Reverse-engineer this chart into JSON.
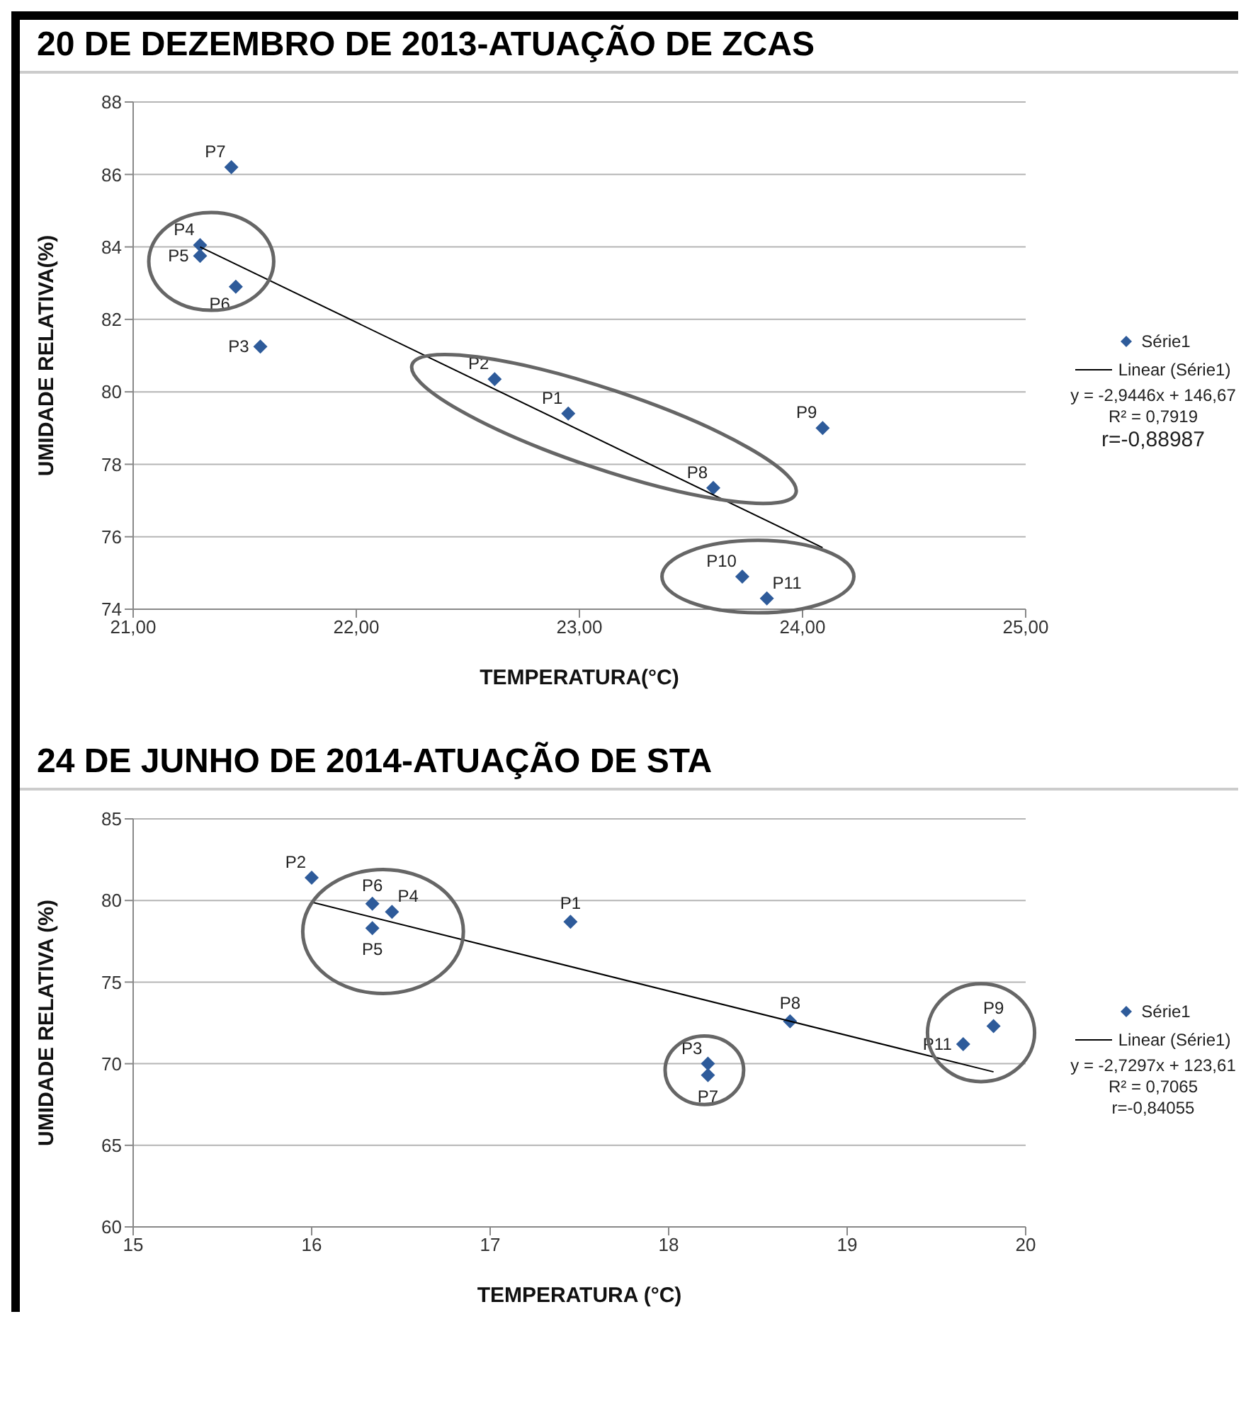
{
  "chart_data": [
    {
      "type": "scatter",
      "title": "20 DE DEZEMBRO DE 2013-ATUAÇÃO DE ZCAS",
      "xlabel": "TEMPERATURA(°C)",
      "ylabel": "UMIDADE RELATIVA(%)",
      "xlim": [
        21,
        25
      ],
      "xticks": [
        {
          "value": 21,
          "label": "21,00"
        },
        {
          "value": 22,
          "label": "22,00"
        },
        {
          "value": 23,
          "label": "23,00"
        },
        {
          "value": 24,
          "label": "24,00"
        },
        {
          "value": 25,
          "label": "25,00"
        }
      ],
      "ylim": [
        74,
        88
      ],
      "yticks": [
        74,
        76,
        78,
        80,
        82,
        84,
        86,
        88
      ],
      "grid": "y",
      "legend": "right",
      "series": [
        {
          "name": "Série1",
          "color": "#2e5b9a",
          "marker": "diamond",
          "x": [
            22.95,
            22.62,
            21.57,
            21.3,
            21.3,
            21.46,
            21.44,
            23.6,
            24.09,
            23.73,
            23.84
          ],
          "values": [
            79.4,
            80.35,
            81.25,
            84.05,
            83.75,
            82.9,
            86.2,
            77.35,
            79.0,
            74.9,
            74.3
          ],
          "value_labels": [
            "P1",
            "P2",
            "P3",
            "P4",
            "P5",
            "P6",
            "P7",
            "P8",
            "P9",
            "P10",
            "P11"
          ]
        },
        {
          "name": "Linear (Série1)",
          "type": "line",
          "color": "#000000",
          "marker": "none",
          "x": [
            21.3,
            24.09
          ],
          "values": [
            84.0,
            75.7
          ]
        }
      ],
      "annotations": [
        "y = -2,9446x + 146,67",
        "R² = 0,7919",
        "r=-0,88987"
      ]
    },
    {
      "type": "scatter",
      "title": "24 DE JUNHO DE 2014-ATUAÇÃO DE STA",
      "xlabel": "TEMPERATURA (°C)",
      "ylabel": "UMIDADE RELATIVA (%)",
      "xlim": [
        15,
        20
      ],
      "xticks": [
        15,
        16,
        17,
        18,
        19,
        20
      ],
      "ylim": [
        60,
        85
      ],
      "yticks": [
        60,
        65,
        70,
        75,
        80,
        85
      ],
      "grid": "y",
      "legend": "right",
      "series": [
        {
          "name": "Série1",
          "color": "#2e5b9a",
          "marker": "diamond",
          "x": [
            17.45,
            16.0,
            18.22,
            16.45,
            16.34,
            16.34,
            18.22,
            18.68,
            19.82,
            19.65
          ],
          "values": [
            78.7,
            81.4,
            70.0,
            79.3,
            78.3,
            79.8,
            69.3,
            72.6,
            72.3,
            71.2
          ],
          "value_labels": [
            "P1",
            "P2",
            "P3",
            "P4",
            "P5",
            "P6",
            "P7",
            "P8",
            "P9",
            "P11"
          ]
        },
        {
          "name": "Linear (Série1)",
          "type": "line",
          "color": "#000000",
          "marker": "none",
          "x": [
            16.0,
            19.82
          ],
          "values": [
            79.9,
            69.5
          ]
        }
      ],
      "annotations": [
        "y = -2,7297x + 123,61",
        "R² = 0,7065",
        "r=-0,84055"
      ]
    }
  ]
}
